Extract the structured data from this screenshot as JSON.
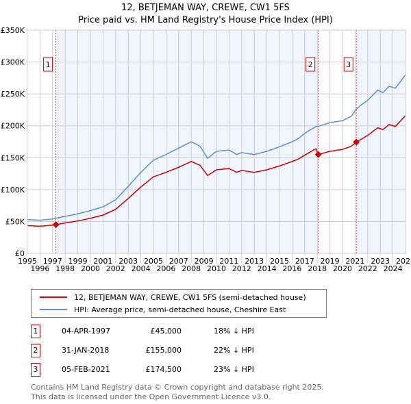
{
  "chart_data": {
    "type": "line",
    "title": "12, BETJEMAN WAY, CREWE, CW1 5FS",
    "subtitle": "Price paid vs. HM Land Registry's House Price Index (HPI)",
    "xlim": [
      1995,
      2025
    ],
    "ylim": [
      0,
      350000
    ],
    "y_ticks": [
      0,
      50000,
      100000,
      150000,
      200000,
      250000,
      300000,
      350000
    ],
    "y_tick_labels": [
      "£0",
      "£50K",
      "£100K",
      "£150K",
      "£200K",
      "£250K",
      "£300K",
      "£350K"
    ],
    "x_tick_labels": [
      "1995",
      "1996",
      "1997",
      "1998",
      "1999",
      "2000",
      "2001",
      "2002",
      "2003",
      "2004",
      "2005",
      "2006",
      "2007",
      "2008",
      "2009",
      "2010",
      "2011",
      "2012",
      "2013",
      "2014",
      "2015",
      "2016",
      "2017",
      "2018",
      "2019",
      "2020",
      "2021",
      "2022",
      "2023",
      "2024",
      "2025"
    ],
    "grid": true,
    "series": [
      {
        "name": "12, BETJEMAN WAY, CREWE, CW1 5FS (semi-detached house)",
        "color": "#cc0000",
        "x": [
          1995,
          1996,
          1997,
          1997.25,
          1998,
          1999,
          2000,
          2001,
          2002,
          2003,
          2004,
          2005,
          2006,
          2007,
          2008,
          2008.7,
          2009.3,
          2010,
          2011,
          2011.6,
          2012,
          2013,
          2014,
          2015,
          2016,
          2016.5,
          2017,
          2017.9,
          2018.08,
          2019,
          2020,
          2020.7,
          2021.1,
          2021.5,
          2022,
          2022.8,
          2023.2,
          2023.7,
          2024.2,
          2025
        ],
        "y": [
          43500,
          42600,
          44300,
          45000,
          47600,
          50800,
          55000,
          60000,
          69000,
          86000,
          104000,
          120000,
          127000,
          135000,
          144000,
          138000,
          122000,
          131000,
          133000,
          127000,
          130000,
          127000,
          131000,
          137000,
          144000,
          148000,
          154000,
          164000,
          155000,
          160000,
          163000,
          168000,
          174500,
          179000,
          185000,
          197000,
          194000,
          202000,
          199000,
          216000
        ]
      },
      {
        "name": "HPI: Average price, semi-detached house, Cheshire East",
        "color": "#5b8fd4",
        "x": [
          1995,
          1996,
          1997,
          1997.25,
          1998,
          1999,
          2000,
          2001,
          2002,
          2003,
          2004,
          2005,
          2006,
          2007,
          2008,
          2008.7,
          2009.3,
          2010,
          2011,
          2011.6,
          2012,
          2013,
          2014,
          2015,
          2016,
          2016.5,
          2017,
          2017.9,
          2018.08,
          2019,
          2020,
          2020.7,
          2021.1,
          2021.5,
          2022,
          2022.8,
          2023.2,
          2023.7,
          2024.2,
          2025
        ],
        "y": [
          53000,
          52000,
          54000,
          55000,
          58000,
          62000,
          67000,
          73000,
          84000,
          105000,
          127000,
          146000,
          155000,
          165000,
          175000,
          168000,
          149000,
          160000,
          162000,
          155000,
          158000,
          155000,
          160000,
          167000,
          175000,
          180000,
          188000,
          199000,
          199000,
          205000,
          208000,
          215000,
          226000,
          233000,
          240000,
          256000,
          252000,
          262000,
          259000,
          280000
        ]
      }
    ],
    "sales": [
      {
        "label": "1",
        "x": 1997.26,
        "y": 45000,
        "date": "04-APR-1997",
        "price": "£45,000",
        "delta": "18% ↓ HPI"
      },
      {
        "label": "2",
        "x": 2018.08,
        "y": 155000,
        "date": "31-JAN-2018",
        "price": "£155,000",
        "delta": "22% ↓ HPI"
      },
      {
        "label": "3",
        "x": 2021.1,
        "y": 174500,
        "date": "05-FEB-2021",
        "price": "£174,500",
        "delta": "23% ↓ HPI"
      }
    ],
    "legend_position": "bottom"
  },
  "footer": [
    "Contains HM Land Registry data © Crown copyright and database right 2025.",
    "This data is licensed under the Open Government Licence v3.0."
  ]
}
